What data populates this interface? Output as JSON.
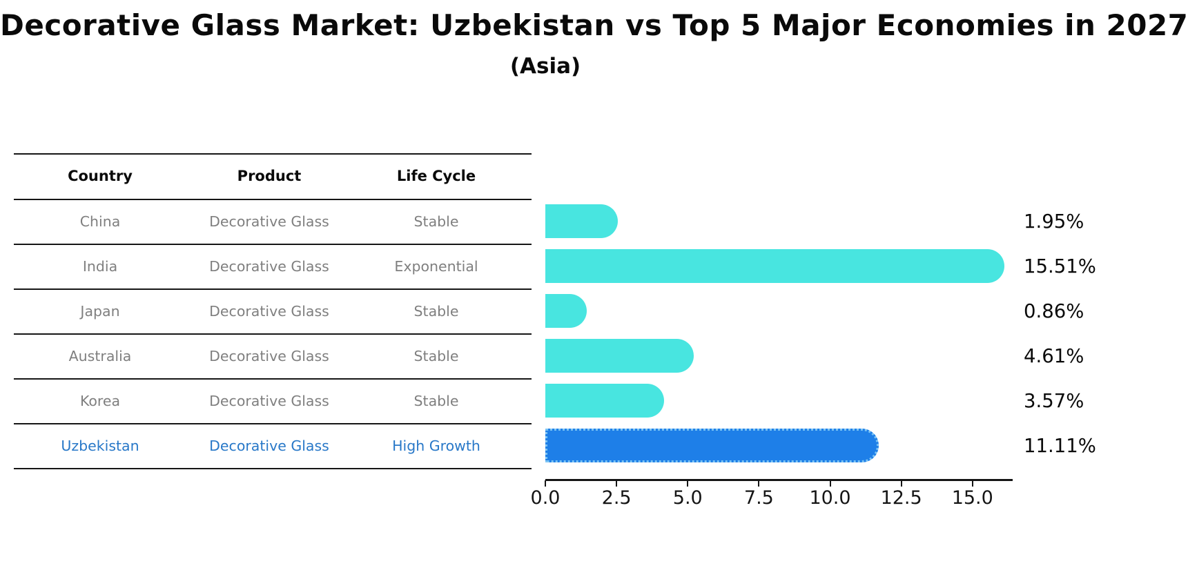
{
  "title": "Decorative Glass Market: Uzbekistan vs Top 5 Major Economies in 2027",
  "subtitle": "(Asia)",
  "table": {
    "columns": [
      "Country",
      "Product",
      "Life Cycle"
    ],
    "rows": [
      {
        "country": "China",
        "product": "Decorative Glass",
        "life_cycle": "Stable",
        "highlighted": false
      },
      {
        "country": "India",
        "product": "Decorative Glass",
        "life_cycle": "Exponential",
        "highlighted": false
      },
      {
        "country": "Japan",
        "product": "Decorative Glass",
        "life_cycle": "Stable",
        "highlighted": false
      },
      {
        "country": "Australia",
        "product": "Decorative Glass",
        "life_cycle": "Stable",
        "highlighted": false
      },
      {
        "country": "Korea",
        "product": "Decorative Glass",
        "life_cycle": "Stable",
        "highlighted": false
      },
      {
        "country": "Uzbekistan",
        "product": "Decorative Glass",
        "life_cycle": "High Growth",
        "highlighted": true
      }
    ]
  },
  "chart_data": {
    "type": "bar",
    "orientation": "horizontal",
    "title": "Decorative Glass Market: Uzbekistan vs Top 5 Major Economies in 2027 (Asia)",
    "categories": [
      "China",
      "India",
      "Japan",
      "Australia",
      "Korea",
      "Uzbekistan"
    ],
    "values": [
      1.95,
      15.51,
      0.86,
      4.61,
      3.57,
      11.11
    ],
    "value_labels": [
      "1.95%",
      "15.51%",
      "0.86%",
      "4.61%",
      "3.57%",
      "11.11%"
    ],
    "x_tick_labels": [
      "0.0",
      "2.5",
      "5.0",
      "7.5",
      "10.0",
      "12.5",
      "15.0"
    ],
    "x_tick_values": [
      0,
      2.5,
      5,
      7.5,
      10,
      12.5,
      15
    ],
    "xlim": [
      0,
      16.4
    ],
    "grid": false,
    "legend": false,
    "highlight_index": 5,
    "colors": {
      "bar": "#48E5E0",
      "highlight_bar": "#1E7FE8",
      "highlight_border": "#7CC4F4",
      "highlight_text": "#2878C8",
      "table_text": "#7F7F7F",
      "axis": "#151515"
    }
  }
}
